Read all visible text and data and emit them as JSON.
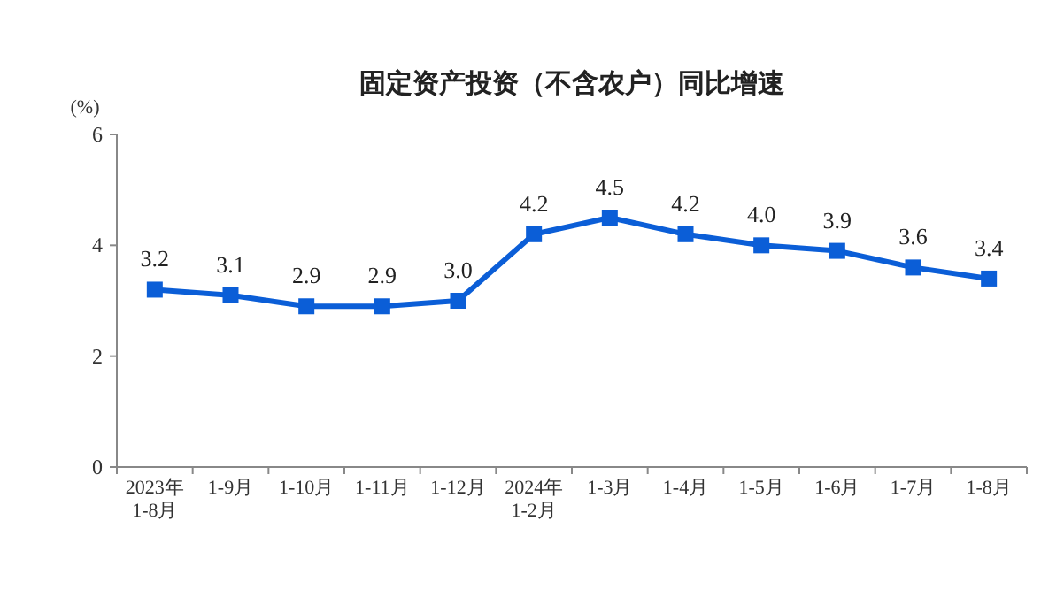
{
  "chart_data": {
    "type": "line",
    "title": "固定资产投资（不含农户）同比增速",
    "ylabel": "(%)",
    "categories": [
      "2023年\n1-8月",
      "1-9月",
      "1-10月",
      "1-11月",
      "1-12月",
      "2024年\n1-2月",
      "1-3月",
      "1-4月",
      "1-5月",
      "1-6月",
      "1-7月",
      "1-8月"
    ],
    "series": [
      {
        "color": "#0b5ed7",
        "values": [
          3.2,
          3.1,
          2.9,
          2.9,
          3.0,
          4.2,
          4.5,
          4.2,
          4.0,
          3.9,
          3.6,
          3.4
        ]
      }
    ],
    "ylim": [
      0,
      6
    ],
    "yticks": [
      0,
      2,
      4,
      6
    ],
    "marker": "square",
    "line_style": "solid",
    "value_labels": [
      "3.2",
      "3.1",
      "2.9",
      "2.9",
      "3.0",
      "4.2",
      "4.5",
      "4.2",
      "4.0",
      "3.9",
      "3.6",
      "3.4"
    ]
  }
}
